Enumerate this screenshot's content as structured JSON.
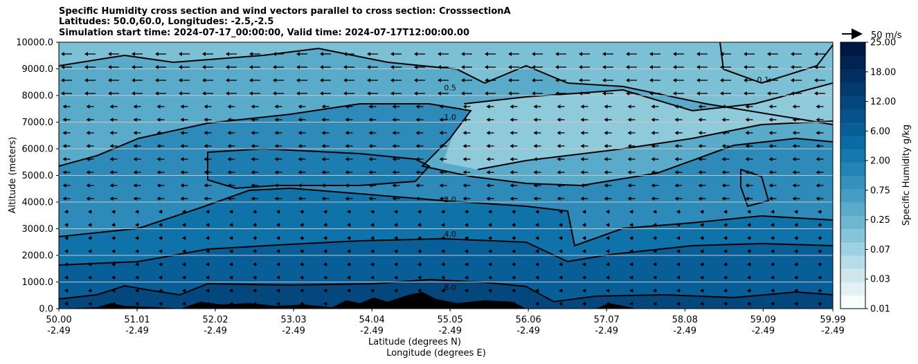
{
  "titles": {
    "line1": "Specific Humidity cross section and wind vectors parallel to cross section: CrosssectionA",
    "line2": "Latitudes: 50.0,60.0, Longitudes: -2.5,-2.5",
    "line3": "Simulation start time: 2024-07-17_00:00:00, Valid time: 2024-07-17T12:00:00.00"
  },
  "chart_data": {
    "type": "contour",
    "title": "Specific Humidity cross section and wind vectors parallel to cross section: CrosssectionA",
    "ylabel": "Altitude (meters)",
    "xlabel_1": "Latitude (degrees N)",
    "xlabel_2": "Longitude (degrees E)",
    "ylim": [
      0,
      10000
    ],
    "y_ticks": [
      "0.0",
      "1000.0",
      "2000.0",
      "3000.0",
      "4000.0",
      "5000.0",
      "6000.0",
      "7000.0",
      "8000.0",
      "9000.0",
      "10000.0"
    ],
    "y_tick_values": [
      0,
      1000,
      2000,
      3000,
      4000,
      5000,
      6000,
      7000,
      8000,
      9000,
      10000
    ],
    "x_ticks_lat": [
      "50.00",
      "51.01",
      "52.02",
      "53.03",
      "54.04",
      "55.05",
      "56.06",
      "57.07",
      "58.08",
      "59.09",
      "59.99"
    ],
    "x_ticks_lon": [
      "-2.49",
      "-2.49",
      "-2.49",
      "-2.49",
      "-2.49",
      "-2.49",
      "-2.49",
      "-2.49",
      "-2.49",
      "-2.49",
      "-2.49"
    ],
    "x_tick_values": [
      50.0,
      51.01,
      52.02,
      53.03,
      54.04,
      55.05,
      56.06,
      57.07,
      58.08,
      59.09,
      59.99
    ],
    "xlim": [
      50.0,
      59.99
    ],
    "colorbar": {
      "label": "Specific Humidity g/kg",
      "tick_labels": [
        "0.01",
        "0.03",
        "0.07",
        "0.25",
        "0.75",
        "2.00",
        "6.00",
        "12.00",
        "18.00",
        "25.00"
      ],
      "colors": [
        "#f7fcfd",
        "#e3f1f4",
        "#cde7ed",
        "#b6dde7",
        "#9ed2e0",
        "#86c4d8",
        "#6fb7d0",
        "#5aaaca",
        "#469dc3",
        "#3391bc",
        "#2385b5",
        "#1479ad",
        "#0a6ca4",
        "#085f98",
        "#06538b",
        "#04477d",
        "#033b6e",
        "#022f60",
        "#012352",
        "#011845"
      ]
    },
    "contour_labels": [
      {
        "text": "0.5",
        "lat": 55.05,
        "alt": 8300
      },
      {
        "text": "1.0",
        "lat": 55.05,
        "alt": 7200
      },
      {
        "text": "2.0",
        "lat": 55.05,
        "alt": 4100
      },
      {
        "text": "4.0",
        "lat": 55.05,
        "alt": 2800
      },
      {
        "text": "8.0",
        "lat": 55.05,
        "alt": 800
      },
      {
        "text": "0.1",
        "lat": 59.09,
        "alt": 8600
      }
    ],
    "wind_reference": {
      "label": "50 m/s",
      "speed": 50
    }
  }
}
